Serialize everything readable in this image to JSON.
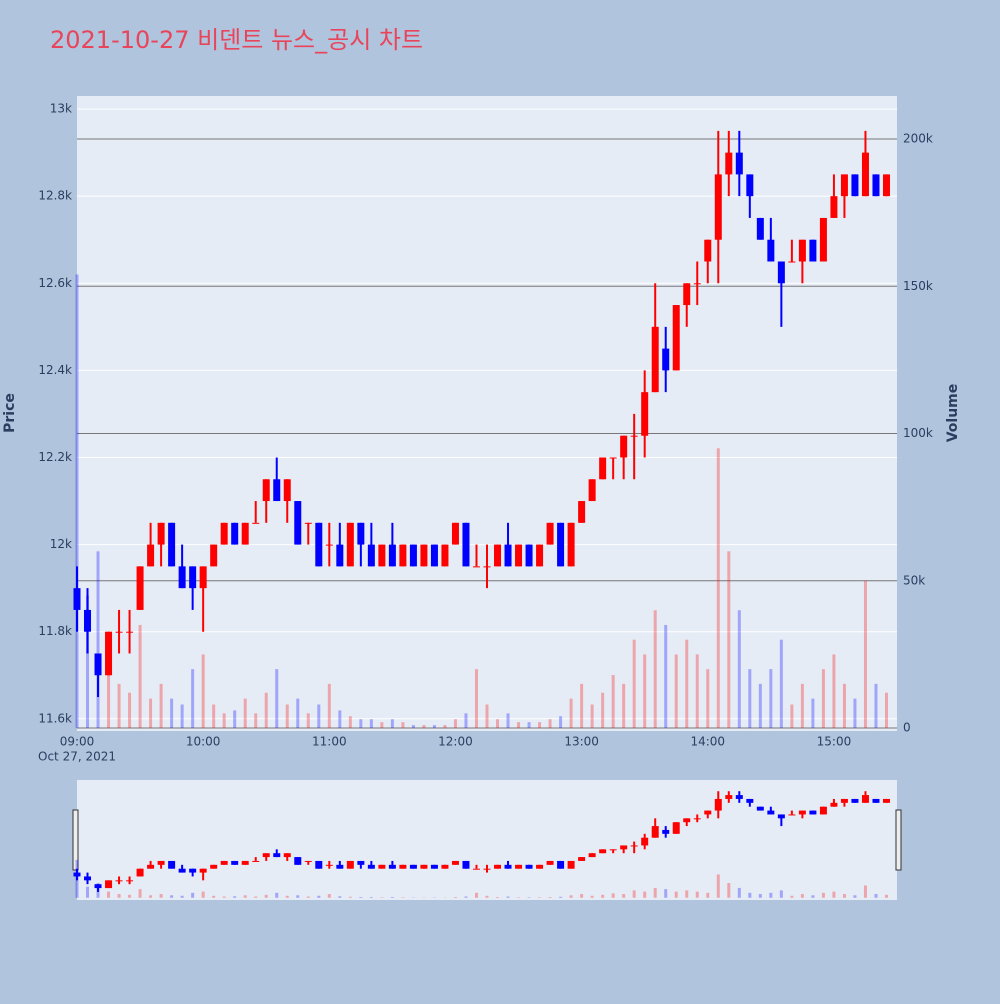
{
  "chart_data": {
    "type": "candlestick",
    "title": "2021-10-27 비덴트 뉴스_공시 차트",
    "y_label": "Price",
    "y2_label": "Volume",
    "x_date_label": "Oct 27, 2021",
    "increasing_color": "#ff0000",
    "decreasing_color": "#0000ff",
    "xlim": [
      "09:00",
      "15:30"
    ],
    "xticks": [
      "09:00",
      "10:00",
      "11:00",
      "12:00",
      "13:00",
      "14:00",
      "15:00"
    ],
    "ylim": [
      11572,
      13030
    ],
    "yticks": [
      {
        "value": 11600,
        "label": "11.6k"
      },
      {
        "value": 11800,
        "label": "11.8k"
      },
      {
        "value": 12000,
        "label": "12k"
      },
      {
        "value": 12200,
        "label": "12.2k"
      },
      {
        "value": 12400,
        "label": "12.4k"
      },
      {
        "value": 12600,
        "label": "12.6k"
      },
      {
        "value": 12800,
        "label": "12.8k"
      },
      {
        "value": 13000,
        "label": "13k"
      }
    ],
    "y2lim": [
      -1000,
      214600
    ],
    "y2ticks": [
      0,
      {
        "value": 50000,
        "label": "50k"
      },
      {
        "value": 100000,
        "label": "100k"
      },
      {
        "value": 150000,
        "label": "150k"
      },
      {
        "value": 200000,
        "label": "200k"
      }
    ],
    "grid": true,
    "rangeslider": true,
    "x": [
      "09:00",
      "09:05",
      "09:10",
      "09:15",
      "09:20",
      "09:25",
      "09:30",
      "09:35",
      "09:40",
      "09:45",
      "09:50",
      "09:55",
      "10:00",
      "10:05",
      "10:10",
      "10:15",
      "10:20",
      "10:25",
      "10:30",
      "10:35",
      "10:40",
      "10:45",
      "10:50",
      "10:55",
      "11:00",
      "11:05",
      "11:10",
      "11:15",
      "11:20",
      "11:25",
      "11:30",
      "11:35",
      "11:40",
      "11:45",
      "11:50",
      "11:55",
      "12:00",
      "12:05",
      "12:10",
      "12:15",
      "12:20",
      "12:25",
      "12:30",
      "12:35",
      "12:40",
      "12:45",
      "12:50",
      "12:55",
      "13:00",
      "13:05",
      "13:10",
      "13:15",
      "13:20",
      "13:25",
      "13:30",
      "13:35",
      "13:40",
      "13:45",
      "13:50",
      "13:55",
      "14:00",
      "14:05",
      "14:10",
      "14:15",
      "14:20",
      "14:25",
      "14:30",
      "14:35",
      "14:40",
      "14:45",
      "14:50",
      "14:55",
      "15:00",
      "15:05",
      "15:10",
      "15:15",
      "15:20",
      "15:25"
    ],
    "open": [
      11900,
      11850,
      11750,
      11700,
      11800,
      11800,
      11850,
      11950,
      12000,
      12050,
      11950,
      11950,
      11900,
      11950,
      12000,
      12050,
      12000,
      12050,
      12100,
      12150,
      12100,
      12100,
      12050,
      12050,
      12000,
      12000,
      11950,
      12050,
      12000,
      11950,
      12000,
      11950,
      12000,
      11950,
      12000,
      11950,
      12000,
      12050,
      11950,
      11950,
      11950,
      12000,
      11950,
      12000,
      11950,
      12000,
      12050,
      11950,
      12050,
      12100,
      12150,
      12200,
      12200,
      12250,
      12250,
      12350,
      12450,
      12400,
      12550,
      12600,
      12650,
      12700,
      12850,
      12900,
      12850,
      12750,
      12700,
      12650,
      12650,
      12650,
      12700,
      12650,
      12750,
      12800,
      12850,
      12800,
      12850,
      12800
    ],
    "high": [
      11950,
      11900,
      11750,
      11800,
      11850,
      11850,
      11950,
      12050,
      12050,
      12050,
      12000,
      11950,
      11950,
      12000,
      12050,
      12050,
      12050,
      12100,
      12150,
      12200,
      12150,
      12100,
      12050,
      12050,
      12050,
      12050,
      12050,
      12050,
      12050,
      12000,
      12050,
      12000,
      12000,
      12000,
      12000,
      12000,
      12050,
      12050,
      12000,
      12000,
      12000,
      12050,
      12000,
      12000,
      12000,
      12050,
      12050,
      12050,
      12100,
      12150,
      12200,
      12200,
      12250,
      12300,
      12400,
      12600,
      12500,
      12550,
      12600,
      12650,
      12700,
      12950,
      12950,
      12950,
      12850,
      12750,
      12750,
      12650,
      12700,
      12700,
      12700,
      12750,
      12850,
      12850,
      12850,
      12950,
      12850,
      12850
    ],
    "low": [
      11800,
      11750,
      11650,
      11700,
      11750,
      11750,
      11850,
      11950,
      11950,
      11950,
      11900,
      11850,
      11800,
      11950,
      12000,
      12000,
      12000,
      12050,
      12050,
      12100,
      12050,
      12000,
      12000,
      11950,
      11950,
      11950,
      11950,
      11950,
      11950,
      11950,
      11950,
      11950,
      11950,
      11950,
      11950,
      11950,
      12000,
      11950,
      11950,
      11900,
      11950,
      11950,
      11950,
      11950,
      11950,
      12000,
      11950,
      11950,
      12050,
      12100,
      12150,
      12150,
      12150,
      12150,
      12200,
      12350,
      12350,
      12400,
      12500,
      12550,
      12600,
      12600,
      12800,
      12800,
      12750,
      12700,
      12650,
      12500,
      12650,
      12600,
      12650,
      12650,
      12750,
      12750,
      12800,
      12800,
      12800,
      12800
    ],
    "close": [
      11850,
      11800,
      11700,
      11800,
      11800,
      11800,
      11950,
      12000,
      12050,
      11950,
      11900,
      11900,
      11950,
      12000,
      12050,
      12000,
      12050,
      12050,
      12150,
      12100,
      12150,
      12000,
      12050,
      11950,
      12000,
      11950,
      12050,
      12000,
      11950,
      12000,
      11950,
      12000,
      11950,
      12000,
      11950,
      12000,
      12050,
      11950,
      11950,
      11950,
      12000,
      11950,
      12000,
      11950,
      12000,
      12050,
      11950,
      12050,
      12100,
      12150,
      12200,
      12200,
      12250,
      12250,
      12350,
      12500,
      12400,
      12550,
      12600,
      12600,
      12700,
      12850,
      12900,
      12850,
      12800,
      12700,
      12650,
      12600,
      12650,
      12700,
      12650,
      12750,
      12800,
      12850,
      12800,
      12900,
      12800,
      12850
    ],
    "volume": [
      154000,
      45000,
      60000,
      25000,
      15000,
      12000,
      35000,
      10000,
      15000,
      10000,
      8000,
      20000,
      25000,
      8000,
      5000,
      6000,
      10000,
      5000,
      12000,
      20000,
      8000,
      10000,
      5000,
      8000,
      15000,
      6000,
      4000,
      3000,
      3000,
      2000,
      3000,
      2000,
      1000,
      1000,
      1000,
      1000,
      3000,
      5000,
      20000,
      8000,
      3000,
      5000,
      2000,
      2000,
      2000,
      3000,
      4000,
      10000,
      15000,
      8000,
      12000,
      18000,
      15000,
      30000,
      25000,
      40000,
      35000,
      25000,
      30000,
      25000,
      20000,
      95000,
      60000,
      40000,
      20000,
      15000,
      20000,
      30000,
      8000,
      15000,
      10000,
      20000,
      25000,
      15000,
      10000,
      50000,
      15000,
      12000
    ]
  }
}
